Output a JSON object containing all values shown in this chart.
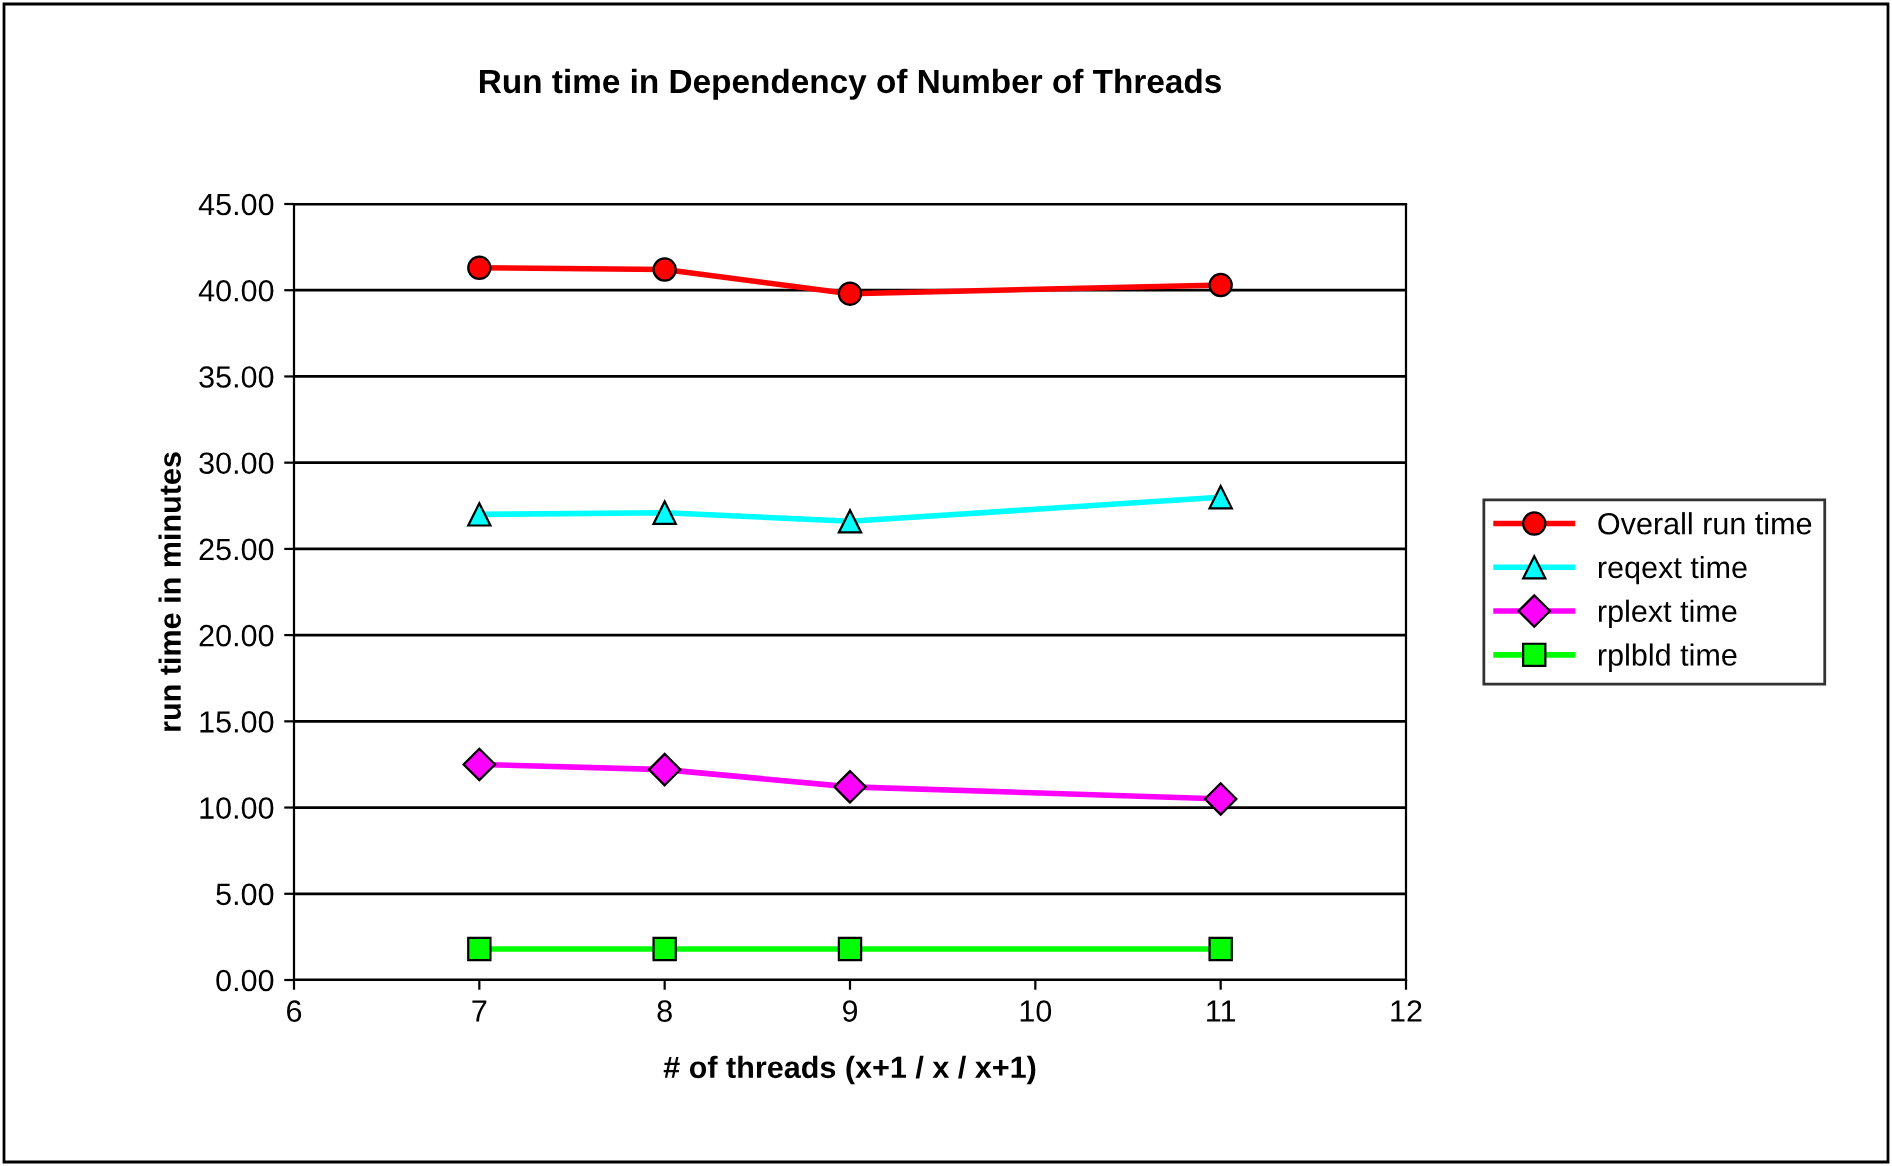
{
  "chart_data": {
    "type": "line",
    "title": "Run time in Dependency of Number of Threads",
    "xlabel": "# of threads (x+1 / x / x+1)",
    "ylabel": "run time in minutes",
    "x": [
      7,
      8,
      9,
      11
    ],
    "series": [
      {
        "name": "Overall run time",
        "color": "#ff0000",
        "marker": "circle",
        "values": [
          41.3,
          41.2,
          39.8,
          40.3
        ]
      },
      {
        "name": "reqext time",
        "color": "#00ffff",
        "marker": "triangle",
        "values": [
          27.0,
          27.1,
          26.6,
          28.0
        ]
      },
      {
        "name": "rplext time",
        "color": "#ff00ff",
        "marker": "diamond",
        "values": [
          12.5,
          12.2,
          11.2,
          10.5
        ]
      },
      {
        "name": "rplbld time",
        "color": "#00ff00",
        "marker": "square",
        "values": [
          1.8,
          1.8,
          1.8,
          1.8
        ]
      }
    ],
    "xlim": [
      6,
      12
    ],
    "xticks": [
      6,
      7,
      8,
      9,
      10,
      11,
      12
    ],
    "ylim": [
      0,
      45
    ],
    "yticks": [
      {
        "value": 0,
        "label": "0.00"
      },
      {
        "value": 5,
        "label": "5.00"
      },
      {
        "value": 10,
        "label": "10.00"
      },
      {
        "value": 15,
        "label": "15.00"
      },
      {
        "value": 20,
        "label": "20.00"
      },
      {
        "value": 25,
        "label": "25.00"
      },
      {
        "value": 30,
        "label": "30.00"
      },
      {
        "value": 35,
        "label": "35.00"
      },
      {
        "value": 40,
        "label": "40.00"
      },
      {
        "value": 45,
        "label": "45.00"
      }
    ],
    "grid": "y",
    "legend": "right",
    "line_style": "solid"
  }
}
